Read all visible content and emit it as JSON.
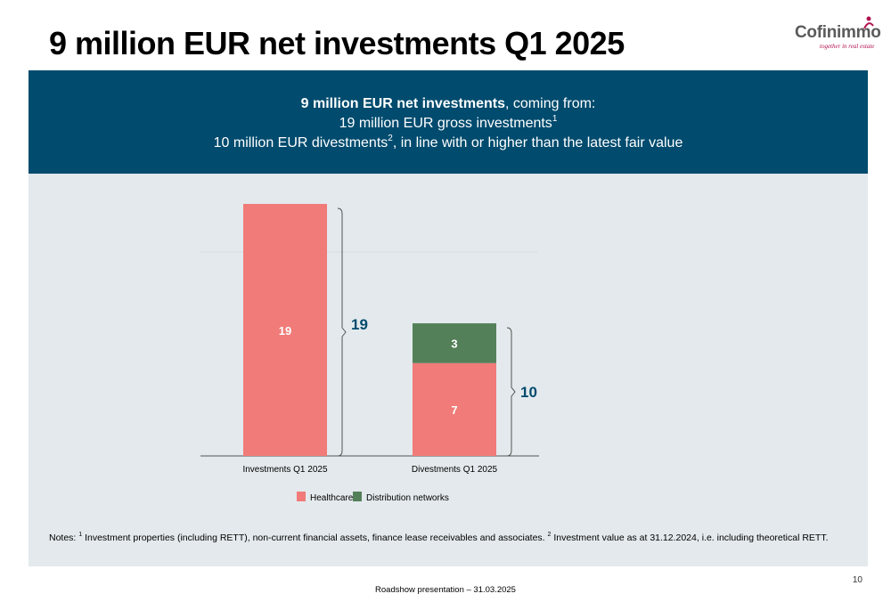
{
  "title": "9 million EUR net investments Q1 2025",
  "logo": {
    "name": "Cofinimmo",
    "tagline": "together in real estate",
    "accent_color": "#b0134f"
  },
  "banner": {
    "line1_bold": "9 million EUR net investments",
    "line1_rest": ", coming from:",
    "line2": "19 million EUR gross investments",
    "line2_sup": "1",
    "line3_a": "10 million EUR divestments",
    "line3_sup": "2",
    "line3_b": ", in line with or higher than the latest fair value",
    "background": "#004b6e"
  },
  "chart_data": {
    "type": "bar",
    "stacked": true,
    "categories": [
      "Investments Q1 2025",
      "Divestments Q1 2025"
    ],
    "series": [
      {
        "name": "Healthcare",
        "values": [
          19,
          7
        ],
        "color": "#f07b78"
      },
      {
        "name": "Distribution networks",
        "values": [
          0,
          3
        ],
        "color": "#548059"
      }
    ],
    "totals": [
      "19",
      "10"
    ],
    "ylim": [
      0,
      20
    ],
    "legend_position": "bottom",
    "grid": false
  },
  "notes": {
    "prefix": "Notes: ",
    "sup1": "1",
    "text1": " Investment properties (including RETT), non-current financial assets, finance lease receivables and associates. ",
    "sup2": "2",
    "text2": " Investment value as at 31.12.2024, i.e. including theoretical RETT."
  },
  "page_number": "10",
  "footer": "Roadshow presentation – 31.03.2025"
}
